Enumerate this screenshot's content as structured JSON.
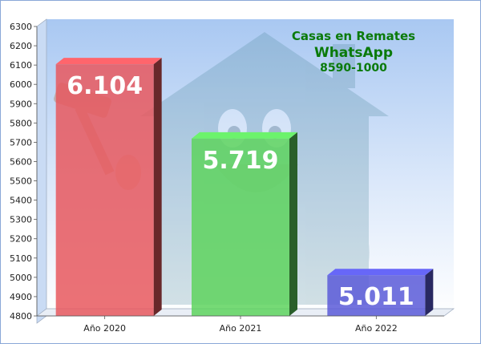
{
  "chart_data": {
    "type": "bar",
    "categories": [
      "Año 2020",
      "Año 2021",
      "Año 2022"
    ],
    "values": [
      6104,
      5719,
      5011
    ],
    "data_labels": [
      "6.104",
      "5.719",
      "5.011"
    ],
    "ylim": [
      4800,
      6300
    ],
    "yticks": [
      4800,
      4900,
      5000,
      5100,
      5200,
      5300,
      5400,
      5500,
      5600,
      5700,
      5800,
      5900,
      6000,
      6100,
      6200,
      6300
    ],
    "title": "",
    "xlabel": "",
    "ylabel": "",
    "colors": [
      "#e8585e",
      "#5ed35e",
      "#5a5ad8"
    ],
    "grid": false,
    "legend": "none",
    "annotations": [
      "Casas en Remates",
      "WhatsApp",
      "8590-1000"
    ],
    "annotation_color": "#0a7a0a",
    "background_icons": [
      "house-mascot-icon",
      "gavel-icon"
    ]
  }
}
